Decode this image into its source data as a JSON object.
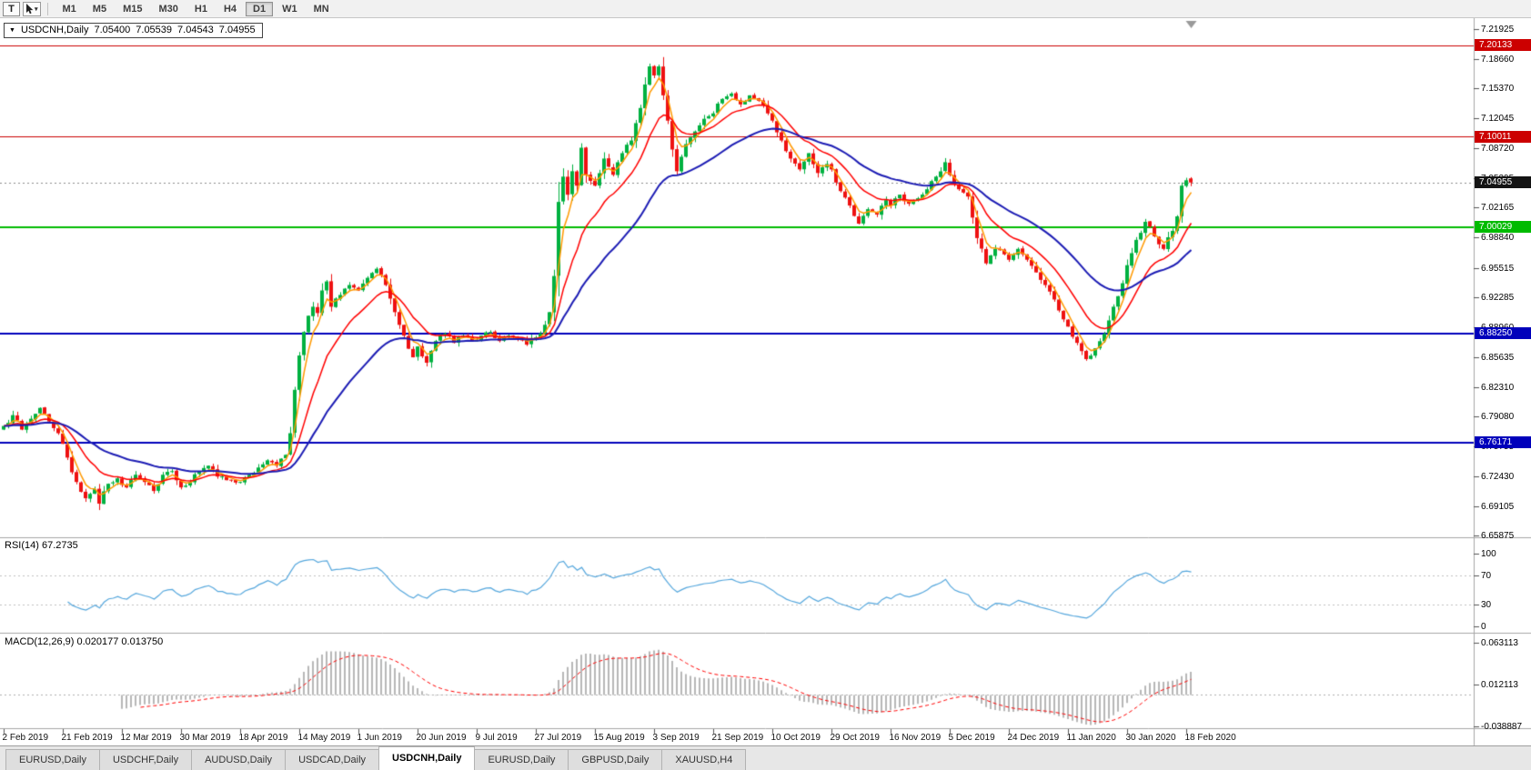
{
  "toolbar": {
    "t_button": "T",
    "cursor_tool_name": "cursor-tool",
    "timeframes": [
      "M1",
      "M5",
      "M15",
      "M30",
      "H1",
      "H4",
      "D1",
      "W1",
      "MN"
    ],
    "active_timeframe": "D1"
  },
  "ohlc_title": {
    "collapse_icon": "▼",
    "symbol": "USDCNH,Daily",
    "open": "7.05400",
    "high": "7.05539",
    "low": "7.04543",
    "close": "7.04955"
  },
  "indicators": {
    "rsi_label": "RSI(14) 67.2735",
    "macd_label": "MACD(12,26,9) 0.020177 0.013750"
  },
  "tabs": {
    "items": [
      {
        "label": "EURUSD,Daily",
        "active": false
      },
      {
        "label": "USDCHF,Daily",
        "active": false
      },
      {
        "label": "AUDUSD,Daily",
        "active": false
      },
      {
        "label": "USDCAD,Daily",
        "active": false
      },
      {
        "label": "USDCNH,Daily",
        "active": true
      },
      {
        "label": "EURUSD,Daily",
        "active": false
      },
      {
        "label": "GBPUSD,Daily",
        "active": false
      },
      {
        "label": "XAUUSD,H4",
        "active": false
      }
    ]
  },
  "chart_data": {
    "type": "candlestick",
    "symbol": "USDCNH",
    "timeframe": "Daily",
    "num_candles": 262,
    "days_per_tick": 13,
    "y_axis_range": [
      6.6558,
      7.2314
    ],
    "price_scale_labels": [
      "7.21925",
      "7.18660",
      "7.15370",
      "7.12045",
      "7.08720",
      "7.05395",
      "7.02165",
      "6.98840",
      "6.95515",
      "6.92285",
      "6.88960",
      "6.85635",
      "6.82310",
      "6.79080",
      "6.75755",
      "6.72430",
      "6.69105",
      "6.65875"
    ],
    "rsi_scale_labels": [
      "100",
      "70",
      "30",
      "0"
    ],
    "macd_scale_labels": [
      "0.063113",
      "0.012113",
      "-0.038887"
    ],
    "date_labels": [
      "2 Feb 2019",
      "21 Feb 2019",
      "12 Mar 2019",
      "30 Mar 2019",
      "18 Apr 2019",
      "14 May 2019",
      "1 Jun 2019",
      "20 Jun 2019",
      "9 Jul 2019",
      "27 Jul 2019",
      "15 Aug 2019",
      "3 Sep 2019",
      "21 Sep 2019",
      "10 Oct 2019",
      "29 Oct 2019",
      "16 Nov 2019",
      "5 Dec 2019",
      "24 Dec 2019",
      "11 Jan 2020",
      "30 Jan 2020",
      "18 Feb 2020"
    ],
    "horizontal_lines": [
      {
        "value": 7.20133,
        "label": "7.20133",
        "color": "#cc0000",
        "width": 1
      },
      {
        "value": 7.10011,
        "label": "7.10011",
        "color": "#cc0000",
        "width": 1
      },
      {
        "value": 7.00029,
        "label": "7.00029",
        "color": "#00bb00",
        "width": 2
      },
      {
        "value": 6.8825,
        "label": "6.88250",
        "color": "#0000bb",
        "width": 2
      },
      {
        "value": 6.76171,
        "label": "6.76171",
        "color": "#0000bb",
        "width": 2
      }
    ],
    "current_price": {
      "value": 7.04955,
      "label": "7.04955",
      "badge_color": "#141414"
    },
    "last_candle": {
      "open": 7.054,
      "high": 7.05539,
      "low": 7.04543,
      "close": 7.04955
    },
    "candle_colors": {
      "up": "#00b140",
      "down": "#ee1111"
    },
    "moving_averages": [
      {
        "period": 4,
        "color": "#ff9900",
        "width": 1.5
      },
      {
        "period": 13,
        "color": "#ff0000",
        "width": 1.5
      },
      {
        "period": 34,
        "color": "#1c1cb4",
        "width": 2
      }
    ],
    "rsi": {
      "period": 14,
      "current": 67.2735,
      "levels": [
        70,
        30
      ],
      "color": "#55a7dd"
    },
    "macd": {
      "fast": 12,
      "slow": 26,
      "signal": 9,
      "main": 0.020177,
      "signal_value": 0.01375,
      "range": [
        -0.038887,
        0.063113
      ],
      "histogram_color": "#b8b8b8",
      "signal_color": "#ff0000"
    },
    "close_anchors": [
      [
        0,
        6.78
      ],
      [
        2,
        6.792
      ],
      [
        4,
        6.776
      ],
      [
        6,
        6.788
      ],
      [
        8,
        6.8
      ],
      [
        10,
        6.785
      ],
      [
        12,
        6.772
      ],
      [
        14,
        6.745
      ],
      [
        16,
        6.718
      ],
      [
        18,
        6.7
      ],
      [
        20,
        6.71
      ],
      [
        21,
        6.694
      ],
      [
        23,
        6.716
      ],
      [
        25,
        6.722
      ],
      [
        27,
        6.712
      ],
      [
        29,
        6.726
      ],
      [
        31,
        6.718
      ],
      [
        33,
        6.708
      ],
      [
        35,
        6.726
      ],
      [
        37,
        6.73
      ],
      [
        39,
        6.712
      ],
      [
        41,
        6.718
      ],
      [
        43,
        6.73
      ],
      [
        45,
        6.736
      ],
      [
        47,
        6.724
      ],
      [
        49,
        6.72
      ],
      [
        52,
        6.718
      ],
      [
        54,
        6.726
      ],
      [
        56,
        6.734
      ],
      [
        58,
        6.742
      ],
      [
        60,
        6.736
      ],
      [
        62,
        6.748
      ],
      [
        63,
        6.772
      ],
      [
        64,
        6.82
      ],
      [
        65,
        6.858
      ],
      [
        66,
        6.884
      ],
      [
        67,
        6.902
      ],
      [
        68,
        6.912
      ],
      [
        69,
        6.905
      ],
      [
        70,
        6.93
      ],
      [
        71,
        6.94
      ],
      [
        72,
        6.912
      ],
      [
        74,
        6.925
      ],
      [
        76,
        6.936
      ],
      [
        78,
        6.93
      ],
      [
        80,
        6.944
      ],
      [
        82,
        6.954
      ],
      [
        84,
        6.936
      ],
      [
        86,
        6.906
      ],
      [
        88,
        6.88
      ],
      [
        90,
        6.856
      ],
      [
        91,
        6.868
      ],
      [
        93,
        6.85
      ],
      [
        95,
        6.874
      ],
      [
        97,
        6.882
      ],
      [
        99,
        6.872
      ],
      [
        101,
        6.88
      ],
      [
        103,
        6.874
      ],
      [
        105,
        6.88
      ],
      [
        107,
        6.884
      ],
      [
        109,
        6.874
      ],
      [
        111,
        6.88
      ],
      [
        113,
        6.876
      ],
      [
        115,
        6.87
      ],
      [
        117,
        6.878
      ],
      [
        119,
        6.892
      ],
      [
        120,
        6.906
      ],
      [
        121,
        6.946
      ],
      [
        122,
        7.028
      ],
      [
        123,
        7.056
      ],
      [
        124,
        7.036
      ],
      [
        125,
        7.062
      ],
      [
        126,
        7.046
      ],
      [
        127,
        7.088
      ],
      [
        128,
        7.058
      ],
      [
        130,
        7.046
      ],
      [
        132,
        7.076
      ],
      [
        134,
        7.058
      ],
      [
        136,
        7.082
      ],
      [
        138,
        7.096
      ],
      [
        140,
        7.132
      ],
      [
        141,
        7.158
      ],
      [
        142,
        7.178
      ],
      [
        143,
        7.168
      ],
      [
        144,
        7.178
      ],
      [
        145,
        7.146
      ],
      [
        146,
        7.118
      ],
      [
        147,
        7.086
      ],
      [
        148,
        7.062
      ],
      [
        149,
        7.078
      ],
      [
        150,
        7.092
      ],
      [
        152,
        7.106
      ],
      [
        154,
        7.12
      ],
      [
        156,
        7.126
      ],
      [
        158,
        7.142
      ],
      [
        160,
        7.148
      ],
      [
        162,
        7.136
      ],
      [
        164,
        7.146
      ],
      [
        166,
        7.14
      ],
      [
        168,
        7.126
      ],
      [
        169,
        7.118
      ],
      [
        171,
        7.096
      ],
      [
        173,
        7.076
      ],
      [
        175,
        7.064
      ],
      [
        177,
        7.082
      ],
      [
        179,
        7.06
      ],
      [
        181,
        7.07
      ],
      [
        182,
        7.064
      ],
      [
        184,
        7.04
      ],
      [
        186,
        7.024
      ],
      [
        188,
        7.004
      ],
      [
        190,
        7.02
      ],
      [
        192,
        7.014
      ],
      [
        194,
        7.03
      ],
      [
        195,
        7.024
      ],
      [
        197,
        7.036
      ],
      [
        199,
        7.026
      ],
      [
        201,
        7.032
      ],
      [
        203,
        7.042
      ],
      [
        205,
        7.056
      ],
      [
        207,
        7.072
      ],
      [
        208,
        7.058
      ],
      [
        210,
        7.042
      ],
      [
        212,
        7.034
      ],
      [
        214,
        6.988
      ],
      [
        216,
        6.96
      ],
      [
        218,
        6.976
      ],
      [
        220,
        6.97
      ],
      [
        221,
        6.964
      ],
      [
        223,
        6.976
      ],
      [
        225,
        6.964
      ],
      [
        227,
        6.95
      ],
      [
        229,
        6.936
      ],
      [
        231,
        6.92
      ],
      [
        233,
        6.898
      ],
      [
        234,
        6.89
      ],
      [
        236,
        6.872
      ],
      [
        238,
        6.854
      ],
      [
        240,
        6.866
      ],
      [
        242,
        6.882
      ],
      [
        244,
        6.912
      ],
      [
        246,
        6.938
      ],
      [
        247,
        6.958
      ],
      [
        249,
        6.986
      ],
      [
        251,
        7.006
      ],
      [
        253,
        6.99
      ],
      [
        255,
        6.976
      ],
      [
        257,
        6.996
      ],
      [
        258,
        7.012
      ],
      [
        259,
        7.046
      ],
      [
        260,
        7.052
      ],
      [
        261,
        7.04955
      ]
    ]
  }
}
